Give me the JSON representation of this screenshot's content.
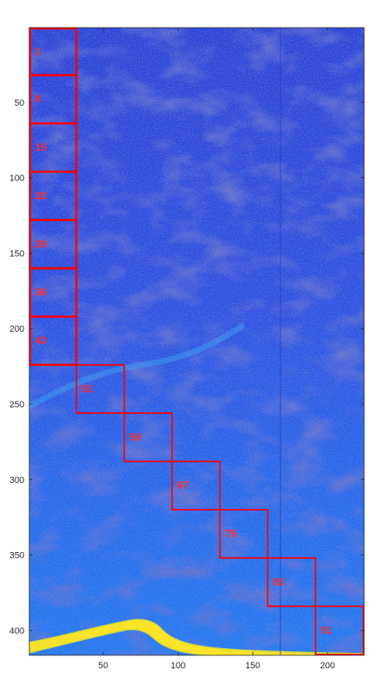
{
  "chart_data": {
    "type": "heatmap",
    "title": "",
    "xlabel": "",
    "ylabel": "",
    "xlim": [
      0.5,
      224.5
    ],
    "ylim": [
      0.5,
      416.5
    ],
    "y_direction": "reverse",
    "colormap": "parula",
    "x_ticks": [
      50,
      100,
      150,
      200
    ],
    "y_ticks": [
      50,
      100,
      150,
      200,
      250,
      300,
      350,
      400
    ],
    "box_color": "#ff0000",
    "label_color": "#ff2a2a",
    "boxes": [
      {
        "label": "1",
        "x": [
          1,
          32
        ],
        "y": [
          1,
          32
        ]
      },
      {
        "label": "8",
        "x": [
          1,
          32
        ],
        "y": [
          32,
          64
        ]
      },
      {
        "label": "15",
        "x": [
          1,
          32
        ],
        "y": [
          64,
          96
        ]
      },
      {
        "label": "22",
        "x": [
          1,
          32
        ],
        "y": [
          96,
          128
        ]
      },
      {
        "label": "29",
        "x": [
          1,
          32
        ],
        "y": [
          128,
          160
        ]
      },
      {
        "label": "36",
        "x": [
          1,
          32
        ],
        "y": [
          160,
          192
        ]
      },
      {
        "label": "43",
        "x": [
          1,
          32
        ],
        "y": [
          192,
          224
        ]
      },
      {
        "label": "51",
        "x": [
          32,
          64
        ],
        "y": [
          224,
          256
        ]
      },
      {
        "label": "59",
        "x": [
          64,
          96
        ],
        "y": [
          256,
          288
        ]
      },
      {
        "label": "67",
        "x": [
          96,
          128
        ],
        "y": [
          288,
          320
        ]
      },
      {
        "label": "75",
        "x": [
          128,
          160
        ],
        "y": [
          320,
          352
        ]
      },
      {
        "label": "83",
        "x": [
          160,
          192
        ],
        "y": [
          352,
          384
        ]
      },
      {
        "label": "91",
        "x": [
          192,
          224
        ],
        "y": [
          384,
          416
        ]
      }
    ]
  }
}
